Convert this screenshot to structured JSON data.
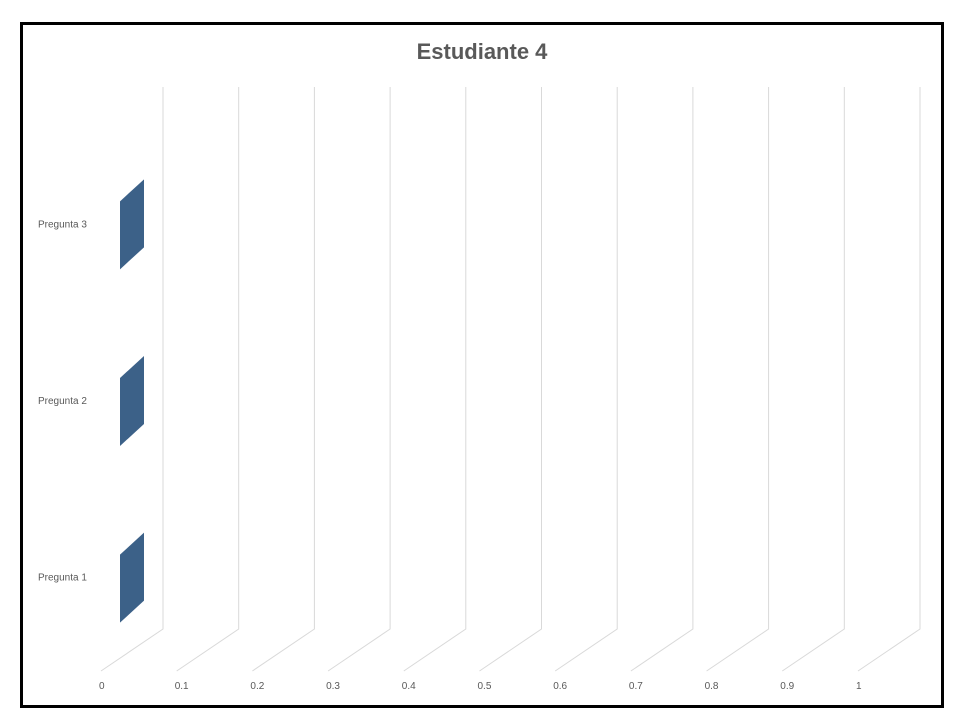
{
  "chart_data": {
    "type": "bar",
    "orientation": "horizontal",
    "three_d": true,
    "title": "Estudiante 4",
    "categories": [
      "Pregunta 1",
      "Pregunta 2",
      "Pregunta 3"
    ],
    "values": [
      0,
      0,
      0
    ],
    "xlim": [
      0,
      1
    ],
    "x_ticks": [
      "0",
      "0.1",
      "0.2",
      "0.3",
      "0.4",
      "0.5",
      "0.6",
      "0.7",
      "0.8",
      "0.9",
      "1"
    ],
    "gridlines": true,
    "legend": "none",
    "bar_color": "#3C6188",
    "grid_color": "#D9D9D9"
  }
}
